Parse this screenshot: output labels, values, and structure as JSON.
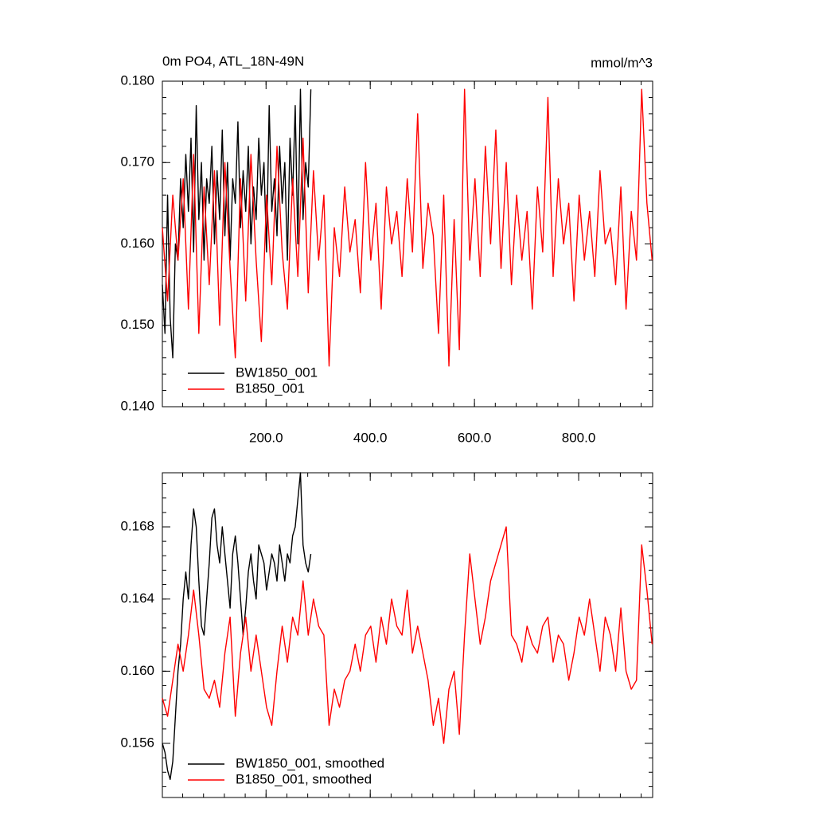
{
  "chart_data": [
    {
      "type": "line",
      "title": "0m PO4, ATL_18N-49N",
      "units": "mmol/m^3",
      "legend": "lower left",
      "xlim": [
        1,
        942
      ],
      "ylim": [
        0.14,
        0.18
      ],
      "xticks": [
        {
          "value": 200,
          "label": "200.0"
        },
        {
          "value": 400,
          "label": "400.0"
        },
        {
          "value": 600,
          "label": "600.0"
        },
        {
          "value": 800,
          "label": "800.0"
        }
      ],
      "yticks": [
        {
          "value": 0.14,
          "label": "0.140"
        },
        {
          "value": 0.15,
          "label": "0.150"
        },
        {
          "value": 0.16,
          "label": "0.160"
        },
        {
          "value": 0.17,
          "label": "0.170"
        },
        {
          "value": 0.18,
          "label": "0.180"
        }
      ],
      "series": [
        {
          "name": "BW1850_001",
          "color": "#000000",
          "x": [
            1,
            6,
            11,
            16,
            21,
            26,
            31,
            36,
            41,
            46,
            51,
            56,
            61,
            66,
            71,
            76,
            81,
            86,
            91,
            96,
            101,
            106,
            111,
            116,
            121,
            126,
            131,
            136,
            141,
            146,
            151,
            156,
            161,
            166,
            171,
            176,
            181,
            186,
            191,
            196,
            201,
            206,
            211,
            216,
            221,
            226,
            231,
            236,
            241,
            246,
            251,
            256,
            261,
            266,
            271,
            276,
            281,
            286
          ],
          "values": [
            0.155,
            0.149,
            0.166,
            0.151,
            0.146,
            0.16,
            0.158,
            0.168,
            0.162,
            0.171,
            0.164,
            0.173,
            0.159,
            0.177,
            0.163,
            0.17,
            0.158,
            0.168,
            0.165,
            0.172,
            0.16,
            0.169,
            0.163,
            0.174,
            0.161,
            0.17,
            0.158,
            0.168,
            0.165,
            0.175,
            0.162,
            0.169,
            0.164,
            0.172,
            0.16,
            0.167,
            0.163,
            0.173,
            0.166,
            0.17,
            0.159,
            0.177,
            0.164,
            0.168,
            0.161,
            0.172,
            0.165,
            0.17,
            0.158,
            0.173,
            0.166,
            0.177,
            0.16,
            0.179,
            0.163,
            0.17,
            0.167,
            0.179
          ]
        },
        {
          "name": "B1850_001",
          "color": "#ff0000",
          "x": [
            1,
            11,
            21,
            31,
            41,
            51,
            61,
            71,
            81,
            91,
            101,
            111,
            121,
            131,
            141,
            151,
            161,
            171,
            181,
            191,
            201,
            211,
            221,
            231,
            241,
            251,
            261,
            271,
            281,
            291,
            301,
            311,
            321,
            331,
            341,
            351,
            361,
            371,
            381,
            391,
            401,
            411,
            421,
            431,
            441,
            451,
            461,
            471,
            481,
            491,
            501,
            511,
            521,
            531,
            541,
            551,
            561,
            571,
            581,
            591,
            601,
            611,
            621,
            631,
            641,
            651,
            661,
            671,
            681,
            691,
            701,
            711,
            721,
            731,
            741,
            751,
            761,
            771,
            781,
            791,
            801,
            811,
            821,
            831,
            841,
            851,
            861,
            871,
            881,
            891,
            901,
            911,
            921,
            931,
            941
          ],
          "values": [
            0.162,
            0.153,
            0.166,
            0.158,
            0.168,
            0.152,
            0.171,
            0.149,
            0.167,
            0.155,
            0.169,
            0.15,
            0.17,
            0.157,
            0.146,
            0.168,
            0.153,
            0.171,
            0.158,
            0.148,
            0.166,
            0.155,
            0.172,
            0.159,
            0.152,
            0.168,
            0.156,
            0.173,
            0.154,
            0.169,
            0.158,
            0.166,
            0.145,
            0.162,
            0.156,
            0.167,
            0.159,
            0.163,
            0.154,
            0.17,
            0.158,
            0.165,
            0.152,
            0.167,
            0.16,
            0.164,
            0.156,
            0.168,
            0.159,
            0.176,
            0.157,
            0.165,
            0.161,
            0.149,
            0.166,
            0.145,
            0.163,
            0.147,
            0.179,
            0.158,
            0.168,
            0.156,
            0.172,
            0.16,
            0.174,
            0.157,
            0.17,
            0.155,
            0.166,
            0.158,
            0.164,
            0.152,
            0.167,
            0.159,
            0.178,
            0.156,
            0.168,
            0.16,
            0.165,
            0.153,
            0.166,
            0.158,
            0.164,
            0.156,
            0.169,
            0.16,
            0.162,
            0.155,
            0.167,
            0.152,
            0.164,
            0.158,
            0.179,
            0.165,
            0.158
          ]
        }
      ]
    },
    {
      "type": "line",
      "legend": "lower left",
      "xlim": [
        1,
        942
      ],
      "ylim": [
        0.153,
        0.171
      ],
      "xticks": [
        200,
        400,
        600,
        800
      ],
      "yticks": [
        0.156,
        {
          "value": 0.16,
          "label": "0.160"
        },
        0.164,
        0.168
      ],
      "series": [
        {
          "name": "BW1850_001, smoothed",
          "color": "#000000",
          "x": [
            1,
            6,
            11,
            16,
            21,
            26,
            31,
            36,
            41,
            46,
            51,
            56,
            61,
            66,
            71,
            76,
            81,
            86,
            91,
            96,
            101,
            106,
            111,
            116,
            121,
            126,
            131,
            136,
            141,
            146,
            151,
            156,
            161,
            166,
            171,
            176,
            181,
            186,
            191,
            196,
            201,
            206,
            211,
            216,
            221,
            226,
            231,
            236,
            241,
            246,
            251,
            256,
            261,
            266,
            271,
            276,
            281,
            286
          ],
          "values": [
            0.156,
            0.1555,
            0.1545,
            0.154,
            0.155,
            0.1575,
            0.16,
            0.1615,
            0.164,
            0.1655,
            0.164,
            0.167,
            0.169,
            0.168,
            0.165,
            0.1625,
            0.162,
            0.164,
            0.166,
            0.1685,
            0.169,
            0.167,
            0.166,
            0.168,
            0.1665,
            0.165,
            0.1635,
            0.1665,
            0.1675,
            0.166,
            0.164,
            0.162,
            0.1635,
            0.1655,
            0.1665,
            0.165,
            0.164,
            0.167,
            0.1665,
            0.166,
            0.1645,
            0.1655,
            0.1665,
            0.166,
            0.165,
            0.167,
            0.166,
            0.165,
            0.1665,
            0.166,
            0.1675,
            0.168,
            0.1695,
            0.171,
            0.167,
            0.166,
            0.1655,
            0.1665
          ]
        },
        {
          "name": "B1850_001, smoothed",
          "color": "#ff0000",
          "x": [
            1,
            11,
            21,
            31,
            41,
            51,
            61,
            71,
            81,
            91,
            101,
            111,
            121,
            131,
            141,
            151,
            161,
            171,
            181,
            191,
            201,
            211,
            221,
            231,
            241,
            251,
            261,
            271,
            281,
            291,
            301,
            311,
            321,
            331,
            341,
            351,
            361,
            371,
            381,
            391,
            401,
            411,
            421,
            431,
            441,
            451,
            461,
            471,
            481,
            491,
            501,
            511,
            521,
            531,
            541,
            551,
            561,
            571,
            581,
            591,
            601,
            611,
            621,
            631,
            641,
            651,
            661,
            671,
            681,
            691,
            701,
            711,
            721,
            731,
            741,
            751,
            761,
            771,
            781,
            791,
            801,
            811,
            821,
            831,
            841,
            851,
            861,
            871,
            881,
            891,
            901,
            911,
            921,
            931,
            941
          ],
          "values": [
            0.1585,
            0.1575,
            0.1595,
            0.1615,
            0.16,
            0.162,
            0.1645,
            0.162,
            0.159,
            0.1585,
            0.1595,
            0.158,
            0.161,
            0.163,
            0.1575,
            0.161,
            0.163,
            0.16,
            0.162,
            0.16,
            0.158,
            0.157,
            0.16,
            0.1625,
            0.1605,
            0.163,
            0.162,
            0.165,
            0.162,
            0.164,
            0.1625,
            0.162,
            0.157,
            0.159,
            0.158,
            0.1595,
            0.16,
            0.1615,
            0.16,
            0.162,
            0.1625,
            0.1605,
            0.163,
            0.1615,
            0.164,
            0.1625,
            0.162,
            0.1645,
            0.161,
            0.1625,
            0.161,
            0.1595,
            0.157,
            0.1585,
            0.156,
            0.159,
            0.16,
            0.1565,
            0.162,
            0.1665,
            0.164,
            0.1615,
            0.163,
            0.165,
            0.166,
            0.167,
            0.168,
            0.162,
            0.1615,
            0.1605,
            0.1625,
            0.1615,
            0.161,
            0.1625,
            0.163,
            0.1605,
            0.162,
            0.1615,
            0.1595,
            0.161,
            0.163,
            0.162,
            0.164,
            0.162,
            0.16,
            0.163,
            0.162,
            0.16,
            0.1635,
            0.16,
            0.159,
            0.1595,
            0.167,
            0.1645,
            0.1615
          ]
        }
      ]
    }
  ]
}
